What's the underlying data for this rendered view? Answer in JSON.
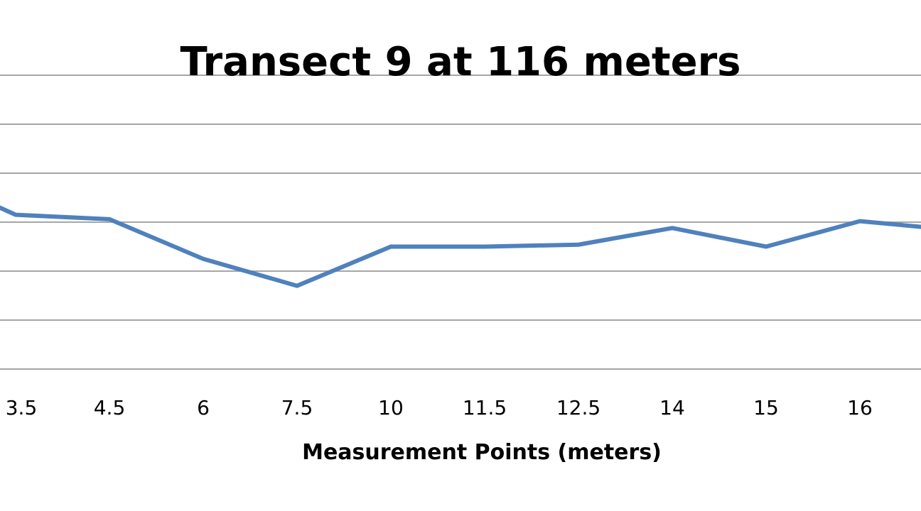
{
  "chart_data": {
    "type": "line",
    "title": "Transect 9 at 116 meters",
    "xlabel": "Measurement Points (meters)",
    "ylabel": "",
    "categories": [
      "3.5",
      "4.5",
      "6",
      "7.5",
      "10",
      "11.5",
      "12.5",
      "14",
      "15",
      "16"
    ],
    "series": [
      {
        "values": [
          3.15,
          3.06,
          2.25,
          1.7,
          2.5,
          2.5,
          2.54,
          2.88,
          2.5,
          3.02
        ],
        "color": "#4F81BD"
      }
    ],
    "ylim": [
      0,
      6
    ],
    "grid": true,
    "legend": "none"
  }
}
